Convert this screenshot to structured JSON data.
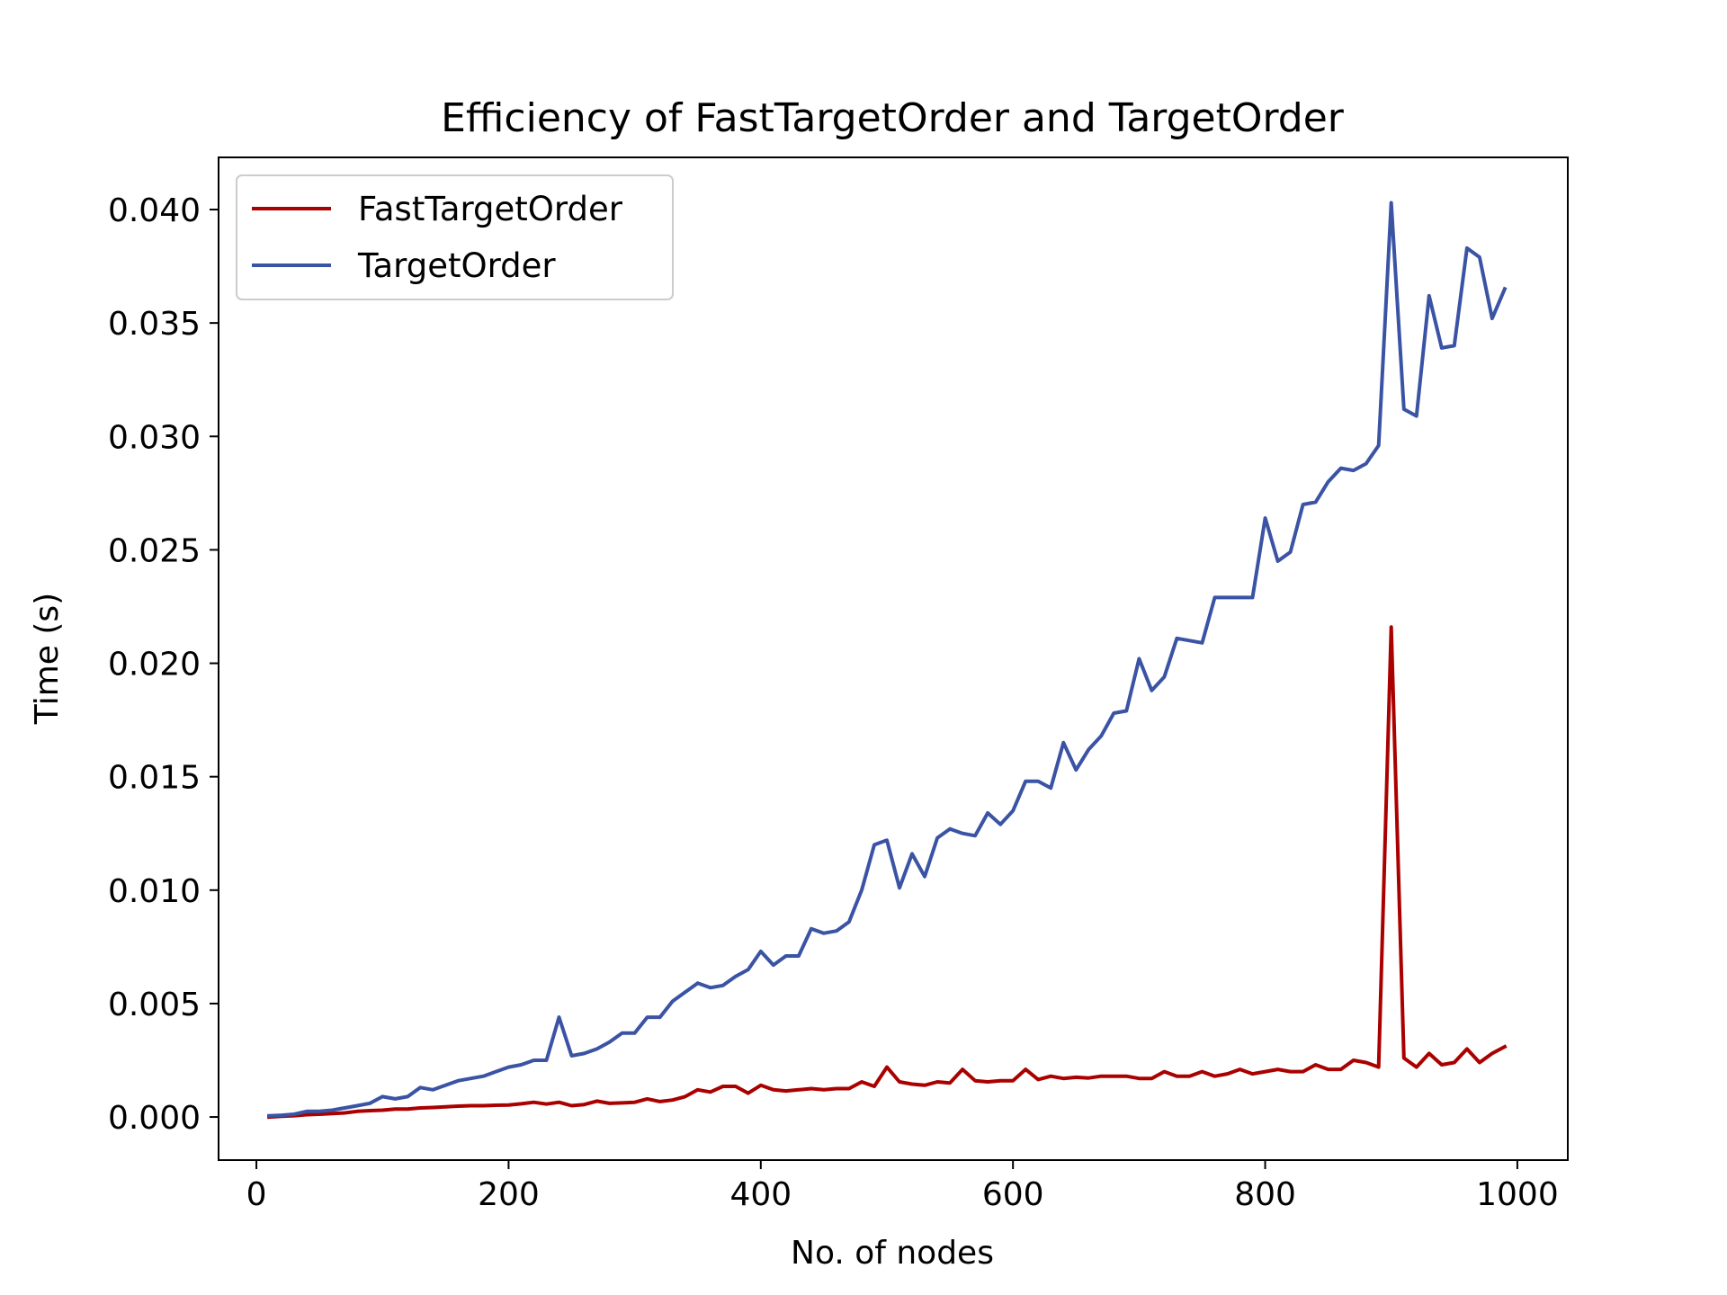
{
  "chart_data": {
    "type": "line",
    "title": "Efficiency of FastTargetOrder and TargetOrder",
    "xlabel": "No. of nodes",
    "ylabel": "Time (s)",
    "xlim": [
      -30,
      1040
    ],
    "ylim": [
      -0.0019,
      0.0423
    ],
    "xticks": [
      0,
      200,
      400,
      600,
      800,
      1000
    ],
    "xtick_labels": [
      "0",
      "200",
      "400",
      "600",
      "800",
      "1000"
    ],
    "yticks": [
      0.0,
      0.005,
      0.01,
      0.015,
      0.02,
      0.025,
      0.03,
      0.035,
      0.04
    ],
    "ytick_labels": [
      "0.000",
      "0.005",
      "0.010",
      "0.015",
      "0.020",
      "0.025",
      "0.030",
      "0.035",
      "0.040"
    ],
    "grid": false,
    "legend": "upper-left",
    "x": [
      10,
      20,
      30,
      40,
      50,
      60,
      70,
      80,
      90,
      100,
      110,
      120,
      130,
      140,
      150,
      160,
      170,
      180,
      190,
      200,
      210,
      220,
      230,
      240,
      250,
      260,
      270,
      280,
      290,
      300,
      310,
      320,
      330,
      340,
      350,
      360,
      370,
      380,
      390,
      400,
      410,
      420,
      430,
      440,
      450,
      460,
      470,
      480,
      490,
      500,
      510,
      520,
      530,
      540,
      550,
      560,
      570,
      580,
      590,
      600,
      610,
      620,
      630,
      640,
      650,
      660,
      670,
      680,
      690,
      700,
      710,
      720,
      730,
      740,
      750,
      760,
      770,
      780,
      790,
      800,
      810,
      820,
      830,
      840,
      850,
      860,
      870,
      880,
      890,
      900,
      910,
      920,
      930,
      940,
      950,
      960,
      970,
      980,
      990
    ],
    "series": [
      {
        "name": "FastTargetOrder",
        "color": "#aa0000",
        "values": [
          0.0,
          3e-05,
          6e-05,
          0.0001,
          0.00012,
          0.00015,
          0.00018,
          0.00025,
          0.00028,
          0.0003,
          0.00035,
          0.00035,
          0.0004,
          0.00042,
          0.00045,
          0.00048,
          0.0005,
          0.0005,
          0.00052,
          0.00053,
          0.00058,
          0.00065,
          0.00057,
          0.00065,
          0.0005,
          0.00055,
          0.0007,
          0.0006,
          0.00062,
          0.00065,
          0.0008,
          0.00068,
          0.00075,
          0.0009,
          0.0012,
          0.0011,
          0.00135,
          0.00135,
          0.00105,
          0.0014,
          0.0012,
          0.00115,
          0.0012,
          0.00125,
          0.0012,
          0.00125,
          0.00125,
          0.00155,
          0.00135,
          0.0022,
          0.00155,
          0.00145,
          0.0014,
          0.00155,
          0.0015,
          0.0021,
          0.0016,
          0.00155,
          0.0016,
          0.0016,
          0.0021,
          0.00165,
          0.0018,
          0.0017,
          0.00175,
          0.00172,
          0.0018,
          0.0018,
          0.0018,
          0.0017,
          0.0017,
          0.002,
          0.0018,
          0.0018,
          0.002,
          0.0018,
          0.0019,
          0.0021,
          0.0019,
          0.002,
          0.0021,
          0.002,
          0.002,
          0.0023,
          0.0021,
          0.0021,
          0.0025,
          0.0024,
          0.0022,
          0.0216,
          0.0026,
          0.0022,
          0.0028,
          0.0023,
          0.0024,
          0.003,
          0.0024,
          0.0028,
          0.0031
        ]
      },
      {
        "name": "TargetOrder",
        "color": "#3a53a4",
        "values": [
          5e-05,
          8e-05,
          0.00012,
          0.00025,
          0.00025,
          0.0003,
          0.0004,
          0.0005,
          0.0006,
          0.0009,
          0.0008,
          0.0009,
          0.0013,
          0.0012,
          0.0014,
          0.0016,
          0.0017,
          0.0018,
          0.002,
          0.0022,
          0.0023,
          0.0025,
          0.0025,
          0.0044,
          0.0027,
          0.0028,
          0.003,
          0.0033,
          0.0037,
          0.0037,
          0.0044,
          0.0044,
          0.0051,
          0.0055,
          0.0059,
          0.0057,
          0.0058,
          0.0062,
          0.0065,
          0.0073,
          0.0067,
          0.0071,
          0.0071,
          0.0083,
          0.0081,
          0.0082,
          0.0086,
          0.01,
          0.012,
          0.0122,
          0.0101,
          0.0116,
          0.0106,
          0.0123,
          0.0127,
          0.0125,
          0.0124,
          0.0134,
          0.0129,
          0.0135,
          0.0148,
          0.0148,
          0.0145,
          0.0165,
          0.0153,
          0.0162,
          0.0168,
          0.0178,
          0.0179,
          0.0202,
          0.0188,
          0.0194,
          0.0211,
          0.021,
          0.0209,
          0.0229,
          0.0229,
          0.0229,
          0.0229,
          0.0264,
          0.0245,
          0.0249,
          0.027,
          0.0271,
          0.028,
          0.0286,
          0.0285,
          0.0288,
          0.0296,
          0.0403,
          0.0312,
          0.0309,
          0.0362,
          0.0339,
          0.034,
          0.0383,
          0.0379,
          0.0352,
          0.0365
        ]
      }
    ]
  }
}
